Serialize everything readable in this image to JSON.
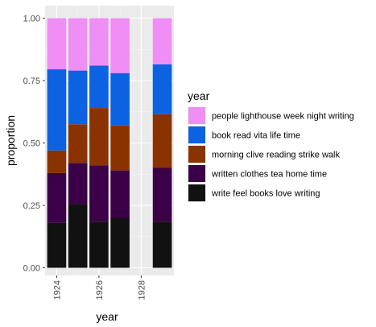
{
  "chart_data": {
    "type": "bar",
    "stacked": true,
    "xlabel": "year",
    "ylabel": "proportion",
    "x": [
      1924,
      1925,
      1926,
      1927,
      1929
    ],
    "xlim": [
      1923.45,
      1929.55
    ],
    "ylim": [
      0,
      1
    ],
    "x_ticks": [
      1924,
      1926,
      1928
    ],
    "x_tick_labels": [
      "1924",
      "1926",
      "1928"
    ],
    "y_ticks": [
      0,
      0.25,
      0.5,
      0.75,
      1
    ],
    "y_tick_labels": [
      "0.00",
      "0.25",
      "0.50",
      "0.75",
      "1.00"
    ],
    "grid": true,
    "legend": {
      "title": "year",
      "placement": "right",
      "order": [
        "people lighthouse week night writing",
        "book read vita life time",
        "morning clive reading strike walk",
        "written clothes tea home time",
        "write feel books love writing"
      ]
    },
    "series": [
      {
        "name": "write feel books love writing",
        "color": "#111111",
        "values": [
          0.18,
          0.255,
          0.185,
          0.2,
          0.185
        ]
      },
      {
        "name": "written clothes tea home time",
        "color": "#3b0048",
        "values": [
          0.2,
          0.165,
          0.225,
          0.19,
          0.215
        ]
      },
      {
        "name": "morning clive reading strike walk",
        "color": "#8b3300",
        "values": [
          0.09,
          0.155,
          0.23,
          0.18,
          0.215
        ]
      },
      {
        "name": "book read vita life time",
        "color": "#0c62e0",
        "values": [
          0.325,
          0.215,
          0.17,
          0.21,
          0.2
        ]
      },
      {
        "name": "people lighthouse week night writing",
        "color": "#ef8ef5",
        "values": [
          0.205,
          0.21,
          0.19,
          0.22,
          0.185
        ]
      }
    ]
  }
}
